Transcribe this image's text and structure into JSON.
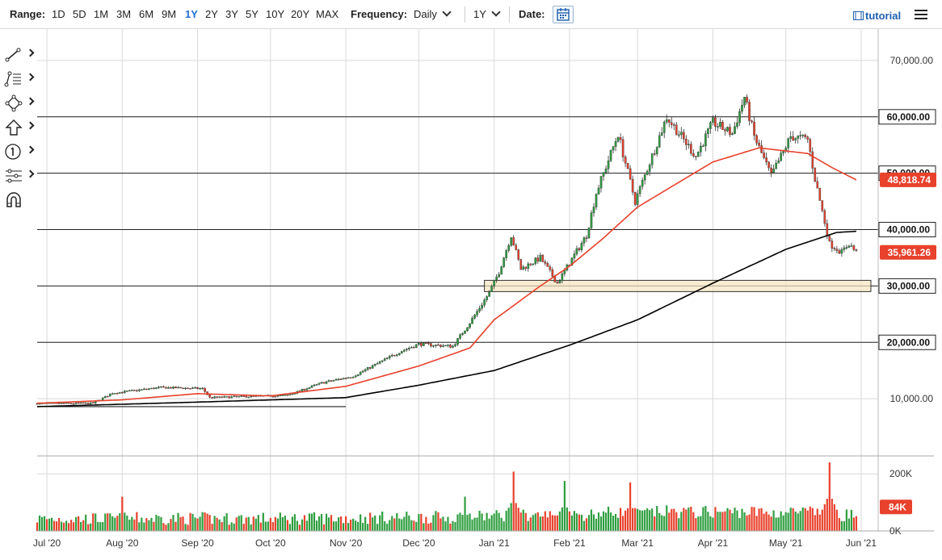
{
  "toolbar": {
    "range_label": "Range:",
    "ranges": [
      "1D",
      "5D",
      "1M",
      "3M",
      "6M",
      "9M",
      "1Y",
      "2Y",
      "3Y",
      "5Y",
      "10Y",
      "20Y",
      "MAX"
    ],
    "active_range": "1Y",
    "frequency_label": "Frequency:",
    "frequency_value": "Daily",
    "period_value": "1Y",
    "date_label": "Date:",
    "tutorial_label": "tutorial"
  },
  "colors": {
    "up": "#2e9e3f",
    "down": "#e8412c",
    "ma50": "#e8412c",
    "ma200": "#000000",
    "grid": "#d9d9d9",
    "zone": "#f5e4bf"
  },
  "tools": [
    "line-tool-icon",
    "fib-tool-icon",
    "shapes-tool-icon",
    "arrow-tool-icon",
    "counter-tool-icon",
    "measure-tool-icon",
    "magnet-icon"
  ],
  "chart_data": {
    "type": "candlestick",
    "title": "",
    "xlabel": "",
    "ylabel": "",
    "ylim": [
      0,
      75000
    ],
    "y_ticks": [
      10000,
      20000,
      30000,
      40000,
      50000,
      60000,
      70000
    ],
    "y_tick_labels": [
      "10,000.00",
      "20,000.00",
      "30,000.00",
      "40,000.00",
      "50,000.00",
      "60,000.00",
      "70,000.00"
    ],
    "x_labels": [
      "Jul '20",
      "Aug '20",
      "Sep '20",
      "Oct '20",
      "Nov '20",
      "Dec '20",
      "Jan '21",
      "Feb '21",
      "Mar '21",
      "Apr '21",
      "May '21",
      "Jun '21"
    ],
    "x_label_dates": [
      "2020-07-01",
      "2020-08-01",
      "2020-09-01",
      "2020-10-01",
      "2020-11-01",
      "2020-12-01",
      "2021-01-01",
      "2021-02-01",
      "2021-03-01",
      "2021-04-01",
      "2021-05-01",
      "2021-06-01"
    ],
    "date_range": [
      "2020-06-27",
      "2021-06-08"
    ],
    "horizontal_levels": [
      20000,
      30000,
      40000,
      50000,
      60000
    ],
    "support_zone": {
      "from": 29000,
      "to": 31000,
      "x_start": "2020-12-28",
      "x_end": "2021-06-05"
    },
    "trendline": {
      "from": {
        "date": "2020-06-27",
        "value": 8600
      },
      "to": {
        "date": "2020-11-01",
        "value": 8600
      }
    },
    "price_anchors": [
      [
        "2020-06-27",
        9150
      ],
      [
        "2020-07-20",
        9200
      ],
      [
        "2020-07-28",
        11000
      ],
      [
        "2020-08-17",
        12000
      ],
      [
        "2020-09-03",
        11800
      ],
      [
        "2020-09-06",
        10200
      ],
      [
        "2020-10-08",
        10600
      ],
      [
        "2020-10-22",
        12800
      ],
      [
        "2020-11-04",
        14000
      ],
      [
        "2020-11-24",
        18500
      ],
      [
        "2020-12-01",
        19700
      ],
      [
        "2020-12-15",
        19300
      ],
      [
        "2020-12-22",
        23500
      ],
      [
        "2020-12-30",
        28800
      ],
      [
        "2021-01-03",
        32500
      ],
      [
        "2021-01-08",
        39000
      ],
      [
        "2021-01-12",
        33000
      ],
      [
        "2021-01-20",
        35000
      ],
      [
        "2021-01-27",
        30500
      ],
      [
        "2021-02-08",
        39000
      ],
      [
        "2021-02-12",
        46500
      ],
      [
        "2021-02-21",
        57000
      ],
      [
        "2021-02-28",
        45000
      ],
      [
        "2021-03-13",
        60000
      ],
      [
        "2021-03-25",
        53000
      ],
      [
        "2021-04-01",
        59000
      ],
      [
        "2021-04-09",
        57000
      ],
      [
        "2021-04-14",
        63500
      ],
      [
        "2021-04-18",
        56500
      ],
      [
        "2021-04-25",
        49500
      ],
      [
        "2021-05-03",
        56500
      ],
      [
        "2021-05-10",
        56000
      ],
      [
        "2021-05-13",
        49000
      ],
      [
        "2021-05-19",
        37500
      ],
      [
        "2021-05-24",
        36000
      ],
      [
        "2021-05-27",
        37500
      ],
      [
        "2021-05-30",
        35961
      ]
    ],
    "ma50_anchors": [
      [
        "2020-06-27",
        9200
      ],
      [
        "2020-08-01",
        9800
      ],
      [
        "2020-09-01",
        10900
      ],
      [
        "2020-10-01",
        10500
      ],
      [
        "2020-11-01",
        12200
      ],
      [
        "2020-12-01",
        15800
      ],
      [
        "2020-12-22",
        19000
      ],
      [
        "2021-01-01",
        24000
      ],
      [
        "2021-01-20",
        30000
      ],
      [
        "2021-02-01",
        33500
      ],
      [
        "2021-02-15",
        38500
      ],
      [
        "2021-03-01",
        44000
      ],
      [
        "2021-04-01",
        52000
      ],
      [
        "2021-04-20",
        54500
      ],
      [
        "2021-05-10",
        53500
      ],
      [
        "2021-05-20",
        51000
      ],
      [
        "2021-05-30",
        48818
      ]
    ],
    "ma200_anchors": [
      [
        "2020-06-27",
        8600
      ],
      [
        "2020-09-01",
        9400
      ],
      [
        "2020-11-01",
        10200
      ],
      [
        "2020-12-01",
        12400
      ],
      [
        "2021-01-01",
        15000
      ],
      [
        "2021-02-01",
        19500
      ],
      [
        "2021-03-01",
        24000
      ],
      [
        "2021-04-01",
        30500
      ],
      [
        "2021-05-01",
        36500
      ],
      [
        "2021-05-22",
        39500
      ],
      [
        "2021-05-30",
        39700
      ]
    ],
    "volume_ylim": [
      0,
      260000
    ],
    "volume_ticks": [
      0,
      200000
    ],
    "volume_tick_labels": [
      "0K",
      "200K"
    ],
    "volume_spikes": [
      [
        "2020-08-01",
        120000
      ],
      [
        "2020-12-20",
        120000
      ],
      [
        "2021-01-09",
        208000
      ],
      [
        "2021-01-30",
        175000
      ],
      [
        "2021-02-26",
        170000
      ],
      [
        "2021-05-19",
        240000
      ]
    ],
    "series_ids": [
      "price",
      "ma50",
      "ma200",
      "volume"
    ]
  },
  "readouts": {
    "ma50_value": "48,818.74",
    "last_price": "35,961.26",
    "last_volume": "84K"
  }
}
